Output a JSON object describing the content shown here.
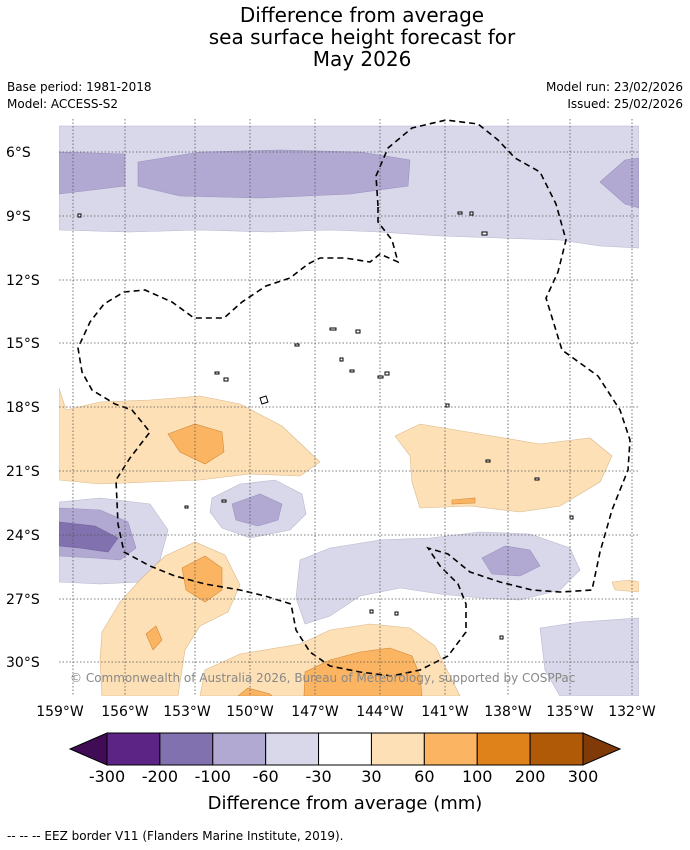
{
  "title": {
    "line1": "Difference from average",
    "line2": "sea surface height forecast for",
    "line3": "May 2026"
  },
  "meta": {
    "base_period": "Base period: 1981-2018",
    "model": "Model: ACCESS-S2",
    "model_run": "Model run: 23/02/2026",
    "issued": "Issued: 25/02/2026"
  },
  "map": {
    "lat_labels": [
      "6°S",
      "9°S",
      "12°S",
      "15°S",
      "18°S",
      "21°S",
      "24°S",
      "27°S",
      "30°S"
    ],
    "lon_labels": [
      "159°W",
      "156°W",
      "153°W",
      "150°W",
      "147°W",
      "144°W",
      "141°W",
      "138°W",
      "135°W",
      "132°W"
    ],
    "copyright": "© Commonwealth of Australia 2026, Bureau of Meteorology, supported by COSPPac"
  },
  "colorbar": {
    "ticks": [
      "-300",
      "-200",
      "-100",
      "-60",
      "-30",
      "30",
      "60",
      "100",
      "200",
      "300"
    ],
    "colors": [
      "#3f0c55",
      "#5c2484",
      "#8171ae",
      "#b1a9d1",
      "#d8d8ea",
      "#ffffff",
      "#fde0b6",
      "#fbb462",
      "#e0821a",
      "#b05a08",
      "#7f3a08"
    ],
    "label": "Difference from average (mm)"
  },
  "footnote": "--  --  -- EEZ border V11 (Flanders Marine Institute, 2019)."
}
